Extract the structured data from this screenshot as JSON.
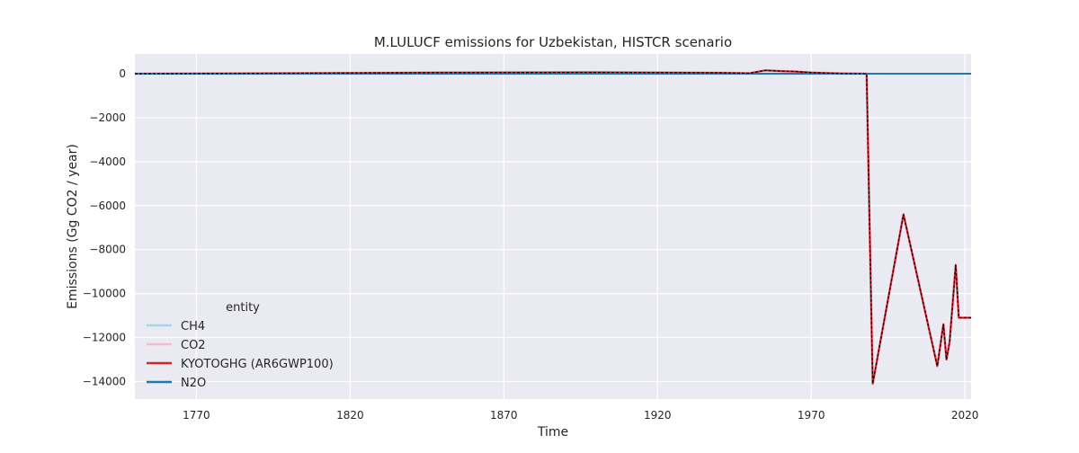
{
  "chart_data": {
    "type": "line",
    "title": "M.LULUCF emissions for Uzbekistan, HISTCR scenario",
    "xlabel": "Time",
    "ylabel": "Emissions (Gg CO2 / year)",
    "xlim": [
      1750,
      2022
    ],
    "ylim": [
      -14800,
      900
    ],
    "xticks": [
      1770,
      1820,
      1870,
      1920,
      1970,
      2020
    ],
    "yticks": [
      0,
      -2000,
      -4000,
      -6000,
      -8000,
      -10000,
      -12000,
      -14000
    ],
    "grid": true,
    "legend": {
      "title": "entity",
      "placement": "lower-left"
    },
    "series": [
      {
        "name": "CH4",
        "color": "#9edae5",
        "style": "solid",
        "x": [
          1750,
          2022
        ],
        "y": [
          0,
          0
        ]
      },
      {
        "name": "CO2",
        "color": "#f7b6d2",
        "style": "solid",
        "x": [
          1750,
          1800,
          1850,
          1900,
          1940,
          1950,
          1955,
          1960,
          1965,
          1970,
          1980,
          1988,
          1990,
          2000,
          2011,
          2013,
          2014,
          2015,
          2017,
          2018,
          2022
        ],
        "y": [
          0,
          20,
          50,
          60,
          40,
          20,
          150,
          120,
          100,
          50,
          10,
          0,
          -14100,
          -6400,
          -13300,
          -11400,
          -13000,
          -12200,
          -8700,
          -11100,
          -11100
        ]
      },
      {
        "name": "KYOTOGHG (AR6GWP100)",
        "color": "#d62728",
        "style": "solid",
        "x": [
          1750,
          1800,
          1850,
          1900,
          1940,
          1950,
          1955,
          1960,
          1965,
          1970,
          1980,
          1988,
          1990,
          2000,
          2011,
          2013,
          2014,
          2015,
          2017,
          2018,
          2022
        ],
        "y": [
          0,
          20,
          50,
          60,
          40,
          20,
          150,
          120,
          100,
          50,
          10,
          0,
          -14100,
          -6400,
          -13300,
          -11400,
          -13000,
          -12200,
          -8700,
          -11100,
          -11100
        ]
      },
      {
        "name": "N2O",
        "color": "#1f77b4",
        "style": "solid",
        "x": [
          1750,
          2022
        ],
        "y": [
          0,
          0
        ]
      }
    ],
    "overlay": {
      "color": "#000000",
      "style": "dashed",
      "x": [
        1750,
        1800,
        1850,
        1900,
        1940,
        1950,
        1955,
        1960,
        1965,
        1970,
        1980,
        1988,
        1990,
        2000,
        2011,
        2013,
        2014,
        2015,
        2017,
        2018,
        2022
      ],
      "y": [
        0,
        20,
        50,
        60,
        40,
        20,
        150,
        120,
        100,
        50,
        10,
        0,
        -14100,
        -6400,
        -13300,
        -11400,
        -13000,
        -12200,
        -8700,
        -11100,
        -11100
      ]
    }
  }
}
